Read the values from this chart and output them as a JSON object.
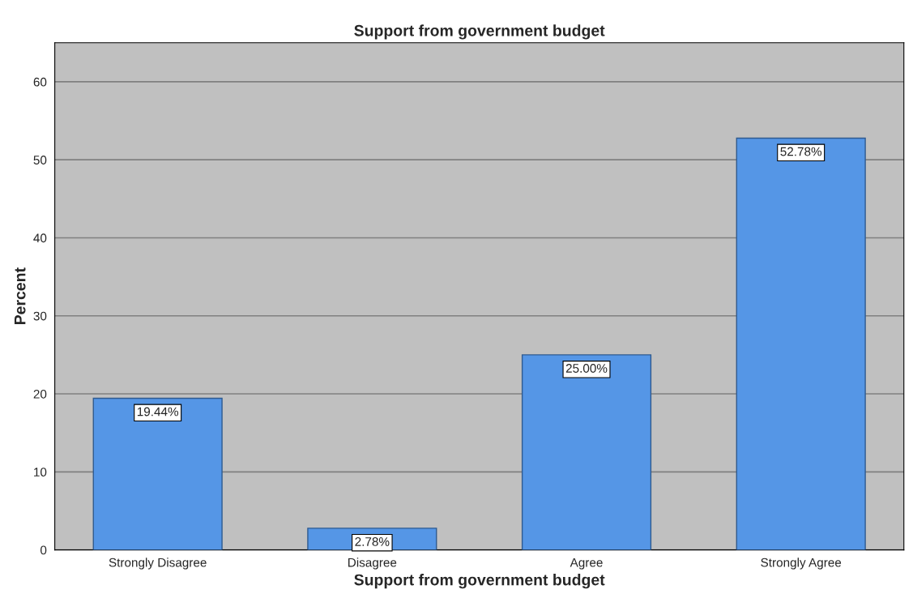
{
  "chart_data": {
    "type": "bar",
    "title": "Support from government budget",
    "xlabel": "Support from government budget",
    "ylabel": "Percent",
    "categories": [
      "Strongly Disagree",
      "Disagree",
      "Agree",
      "Strongly Agree"
    ],
    "values": [
      19.44,
      2.78,
      25.0,
      52.78
    ],
    "value_labels": [
      "19.44%",
      "2.78%",
      "25.00%",
      "52.78%"
    ],
    "color": "#5596e6",
    "ylim": [
      0,
      65
    ],
    "yticks": [
      0,
      10,
      20,
      30,
      40,
      50,
      60
    ],
    "grid": "y"
  }
}
